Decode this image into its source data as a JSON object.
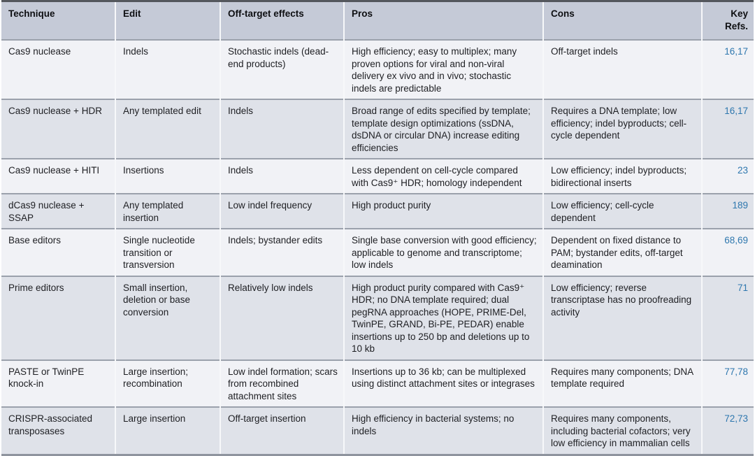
{
  "colors": {
    "header_bg": "#c5cad7",
    "row_light": "#f1f2f6",
    "row_dark": "#dfe2e9",
    "ref_blue": "#2e77ae"
  },
  "table": {
    "columns": [
      {
        "key": "technique",
        "label": "Technique"
      },
      {
        "key": "edit",
        "label": "Edit"
      },
      {
        "key": "off_target",
        "label": "Off-target effects"
      },
      {
        "key": "pros",
        "label": "Pros"
      },
      {
        "key": "cons",
        "label": "Cons"
      },
      {
        "key": "refs",
        "label": "Key Refs."
      }
    ],
    "rows": [
      {
        "technique": "Cas9 nuclease",
        "edit": "Indels",
        "off_target": "Stochastic indels (dead-end products)",
        "pros": "High efficiency; easy to multiplex; many proven options for viral and non-viral delivery ex vivo and in vivo; stochastic indels are predictable",
        "cons": "Off-target indels",
        "refs": "16,17"
      },
      {
        "technique": "Cas9 nuclease + HDR",
        "edit": "Any templated edit",
        "off_target": "Indels",
        "pros": "Broad range of edits specified by template; template design optimizations (ssDNA, dsDNA or circular DNA) increase editing efficiencies",
        "cons": "Requires a DNA template; low efficiency; indel byproducts; cell-cycle dependent",
        "refs": "16,17"
      },
      {
        "technique": "Cas9 nuclease + HITI",
        "edit": "Insertions",
        "off_target": "Indels",
        "pros": "Less dependent on cell-cycle compared with Cas9⁺ HDR; homology independent",
        "cons": "Low efficiency; indel byproducts; bidirectional inserts",
        "refs": "23"
      },
      {
        "technique": "dCas9 nuclease + SSAP",
        "edit": "Any templated insertion",
        "off_target": "Low indel frequency",
        "pros": "High product purity",
        "cons": "Low efficiency; cell-cycle dependent",
        "refs": "189"
      },
      {
        "technique": "Base editors",
        "edit": "Single nucleotide transition or transversion",
        "off_target": "Indels; bystander edits",
        "pros": "Single base conversion with good efficiency; applicable to genome and transcriptome; low indels",
        "cons": "Dependent on fixed distance to PAM; bystander edits, off-target deamination",
        "refs": "68,69"
      },
      {
        "technique": "Prime editors",
        "edit": "Small insertion, deletion or base conversion",
        "off_target": "Relatively low indels",
        "pros": "High product purity compared with Cas9⁺ HDR; no DNA template required; dual pegRNA approaches (HOPE, PRIME-Del, TwinPE, GRAND, Bi-PE, PEDAR) enable insertions up to 250 bp and deletions up to 10 kb",
        "cons": "Low efficiency; reverse transcriptase has no proofreading activity",
        "refs": "71"
      },
      {
        "technique": "PASTE or TwinPE knock-in",
        "edit": "Large insertion; recombination",
        "off_target": "Low indel formation; scars from recombined attachment sites",
        "pros": "Insertions up to 36 kb; can be multiplexed using distinct attachment sites or integrases",
        "cons": "Requires many components; DNA template required",
        "refs": "77,78"
      },
      {
        "technique": "CRISPR-associated transposases",
        "edit": "Large insertion",
        "off_target": "Off-target insertion",
        "pros": "High efficiency in bacterial systems; no indels",
        "cons": "Requires many components, including bacterial cofactors; very low efficiency in mammalian cells",
        "refs": "72,73"
      }
    ]
  }
}
